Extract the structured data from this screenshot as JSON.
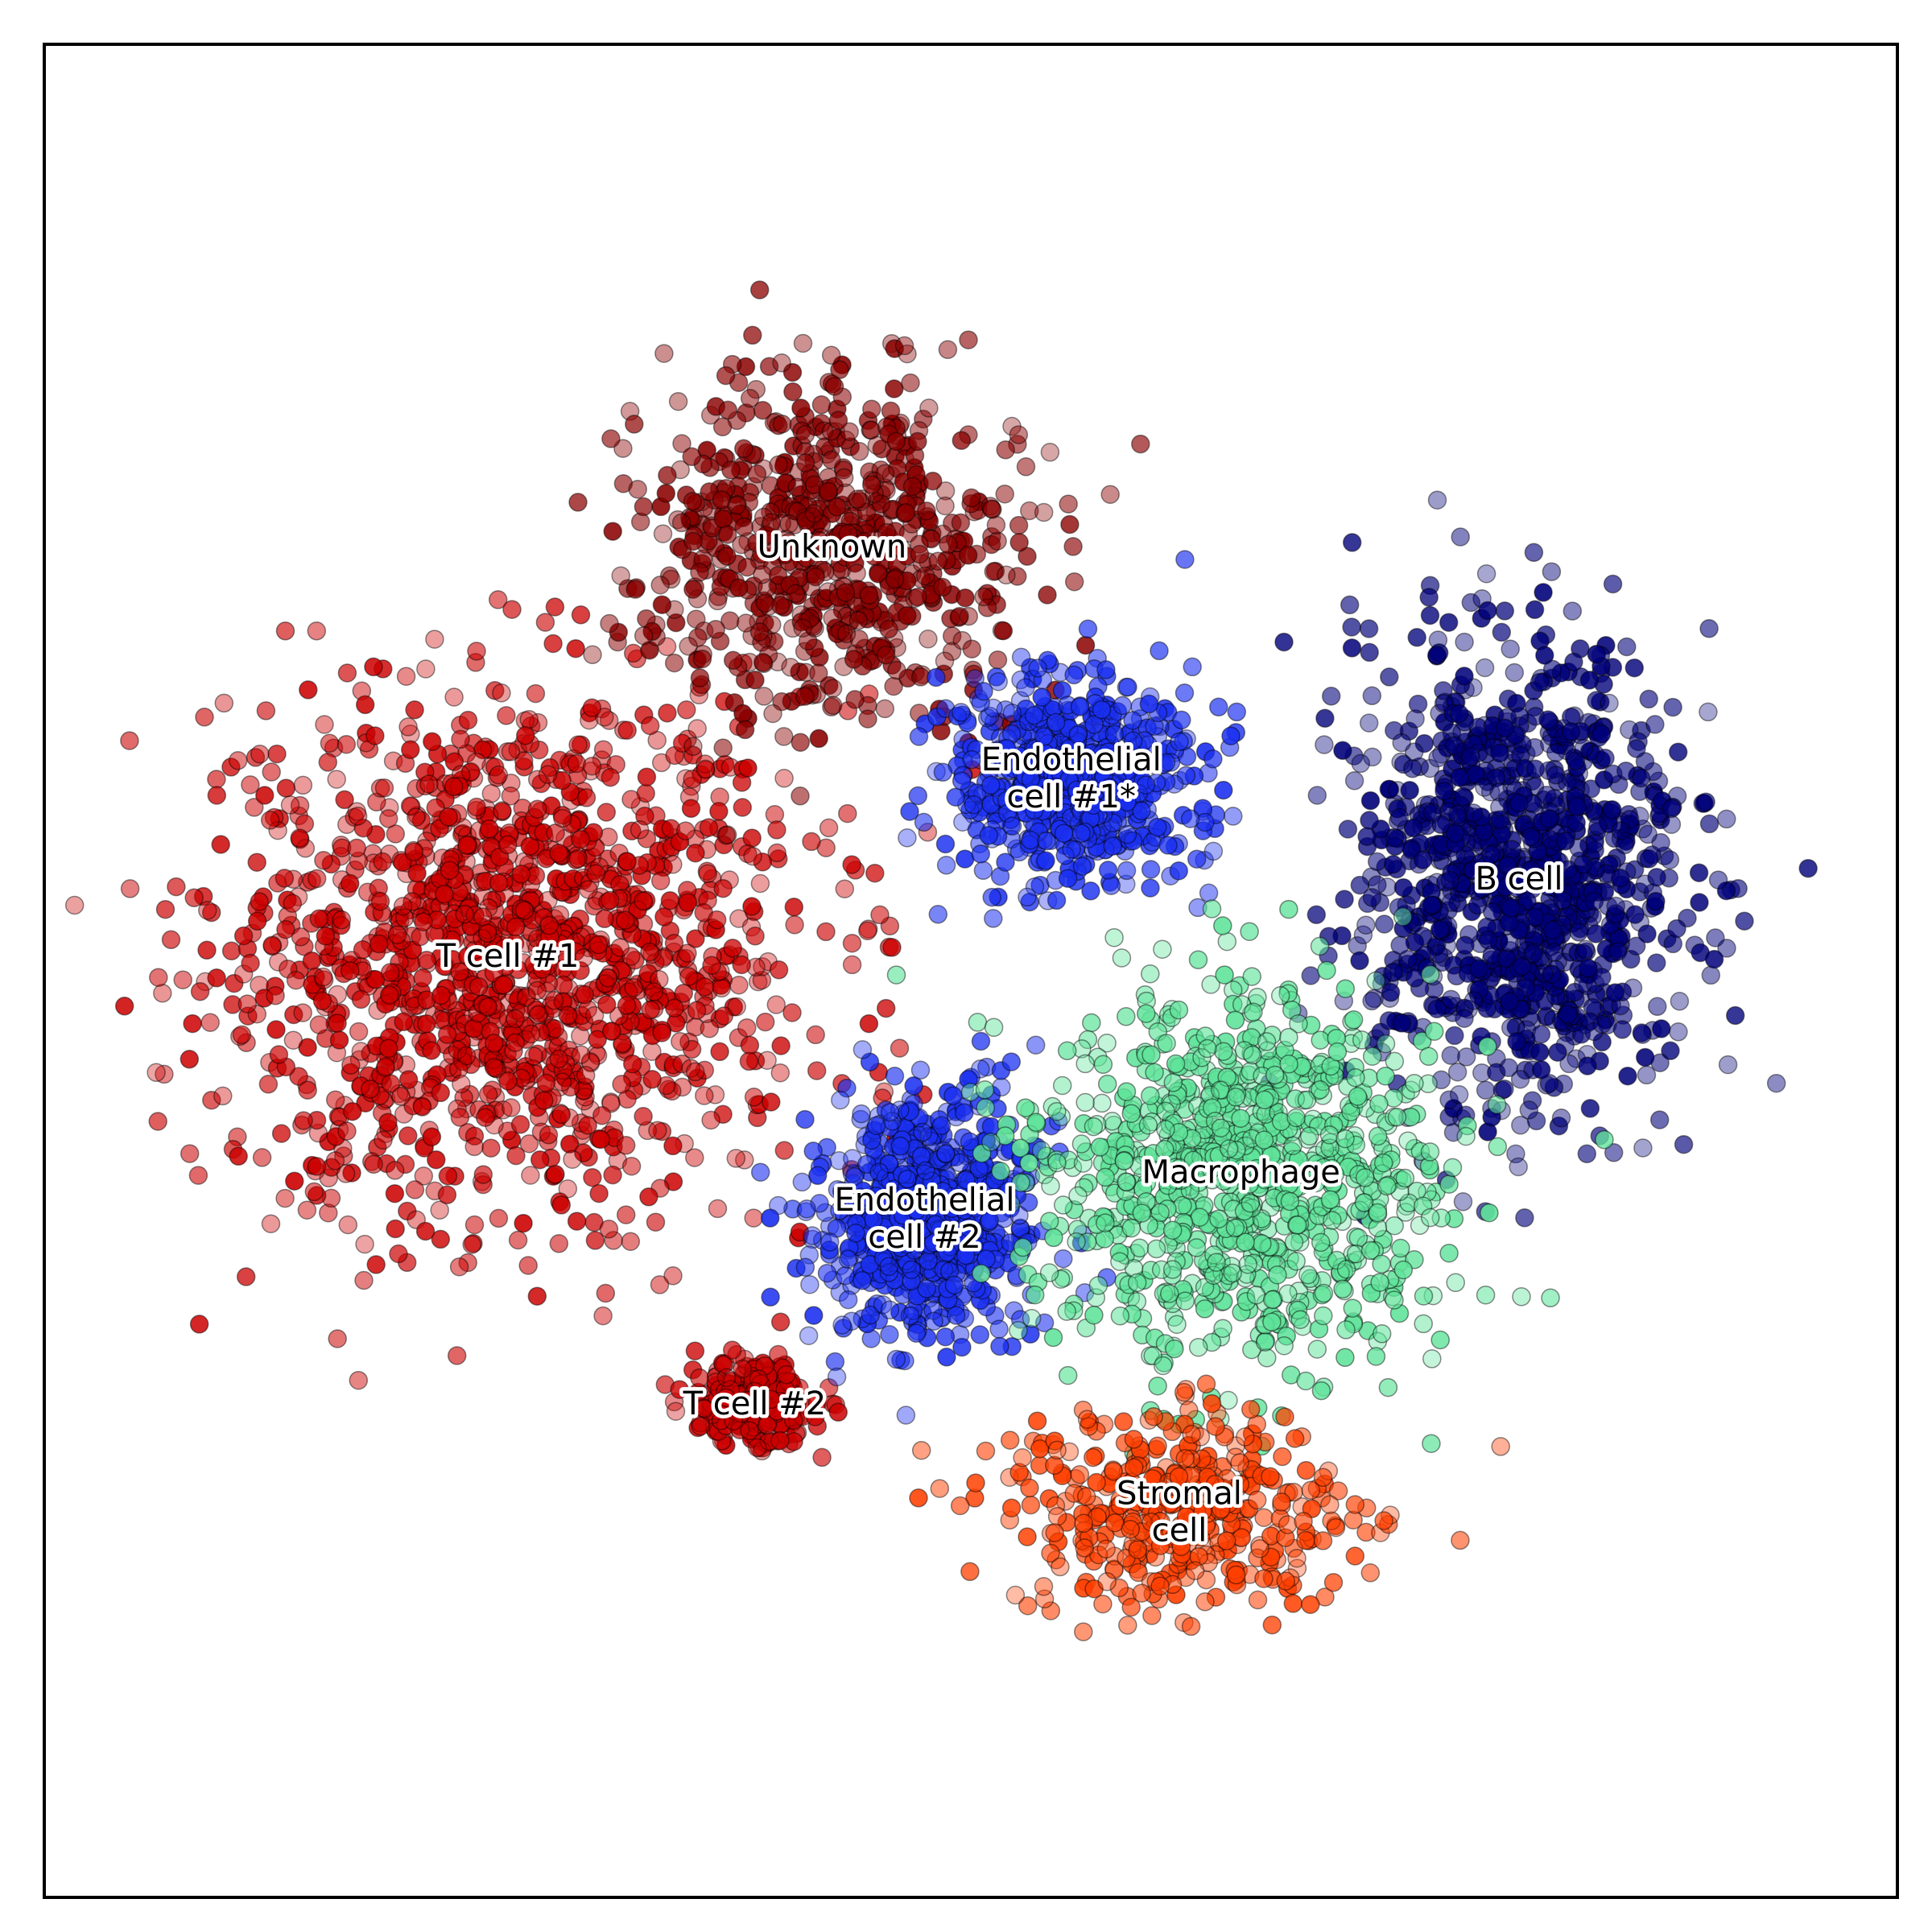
{
  "chart_data": {
    "type": "scatter",
    "title": "",
    "xlabel": "",
    "ylabel": "",
    "grid": false,
    "legend": "none",
    "axis_ticks": false,
    "clusters": [
      {
        "label_lines": [
          "T cell #1"
        ],
        "color": "#cc0000",
        "center": [
          -0.6,
          0.02
        ],
        "spread": [
          0.34,
          0.3
        ],
        "count": 1500
      },
      {
        "label_lines": [
          "T cell #2"
        ],
        "color": "#cc0000",
        "center": [
          -0.28,
          -0.56
        ],
        "spread": [
          0.07,
          0.05
        ],
        "count": 260
      },
      {
        "label_lines": [
          "Unknown"
        ],
        "color": "#8b0000",
        "center": [
          -0.18,
          0.55
        ],
        "spread": [
          0.22,
          0.2
        ],
        "count": 700
      },
      {
        "label_lines": [
          "Endothelial",
          "cell #1*"
        ],
        "color": "#1a2ff0",
        "center": [
          0.13,
          0.25
        ],
        "spread": [
          0.14,
          0.12
        ],
        "count": 650
      },
      {
        "label_lines": [
          "Endothelial",
          "cell #2"
        ],
        "color": "#1a2ff0",
        "center": [
          -0.06,
          -0.32
        ],
        "spread": [
          0.13,
          0.14
        ],
        "count": 750
      },
      {
        "label_lines": [
          "B cell"
        ],
        "color": "#00007a",
        "center": [
          0.71,
          0.12
        ],
        "spread": [
          0.19,
          0.28
        ],
        "count": 1100
      },
      {
        "label_lines": [
          "Macrophage"
        ],
        "color": "#5fe39a",
        "center": [
          0.35,
          -0.26
        ],
        "spread": [
          0.24,
          0.22
        ],
        "count": 950
      },
      {
        "label_lines": [
          "Stromal",
          "cell"
        ],
        "color": "#ff3f00",
        "center": [
          0.27,
          -0.7
        ],
        "spread": [
          0.2,
          0.12
        ],
        "count": 420
      }
    ],
    "xlim": [
      -1.2,
      1.2
    ],
    "ylim": [
      -1.2,
      1.2
    ]
  }
}
